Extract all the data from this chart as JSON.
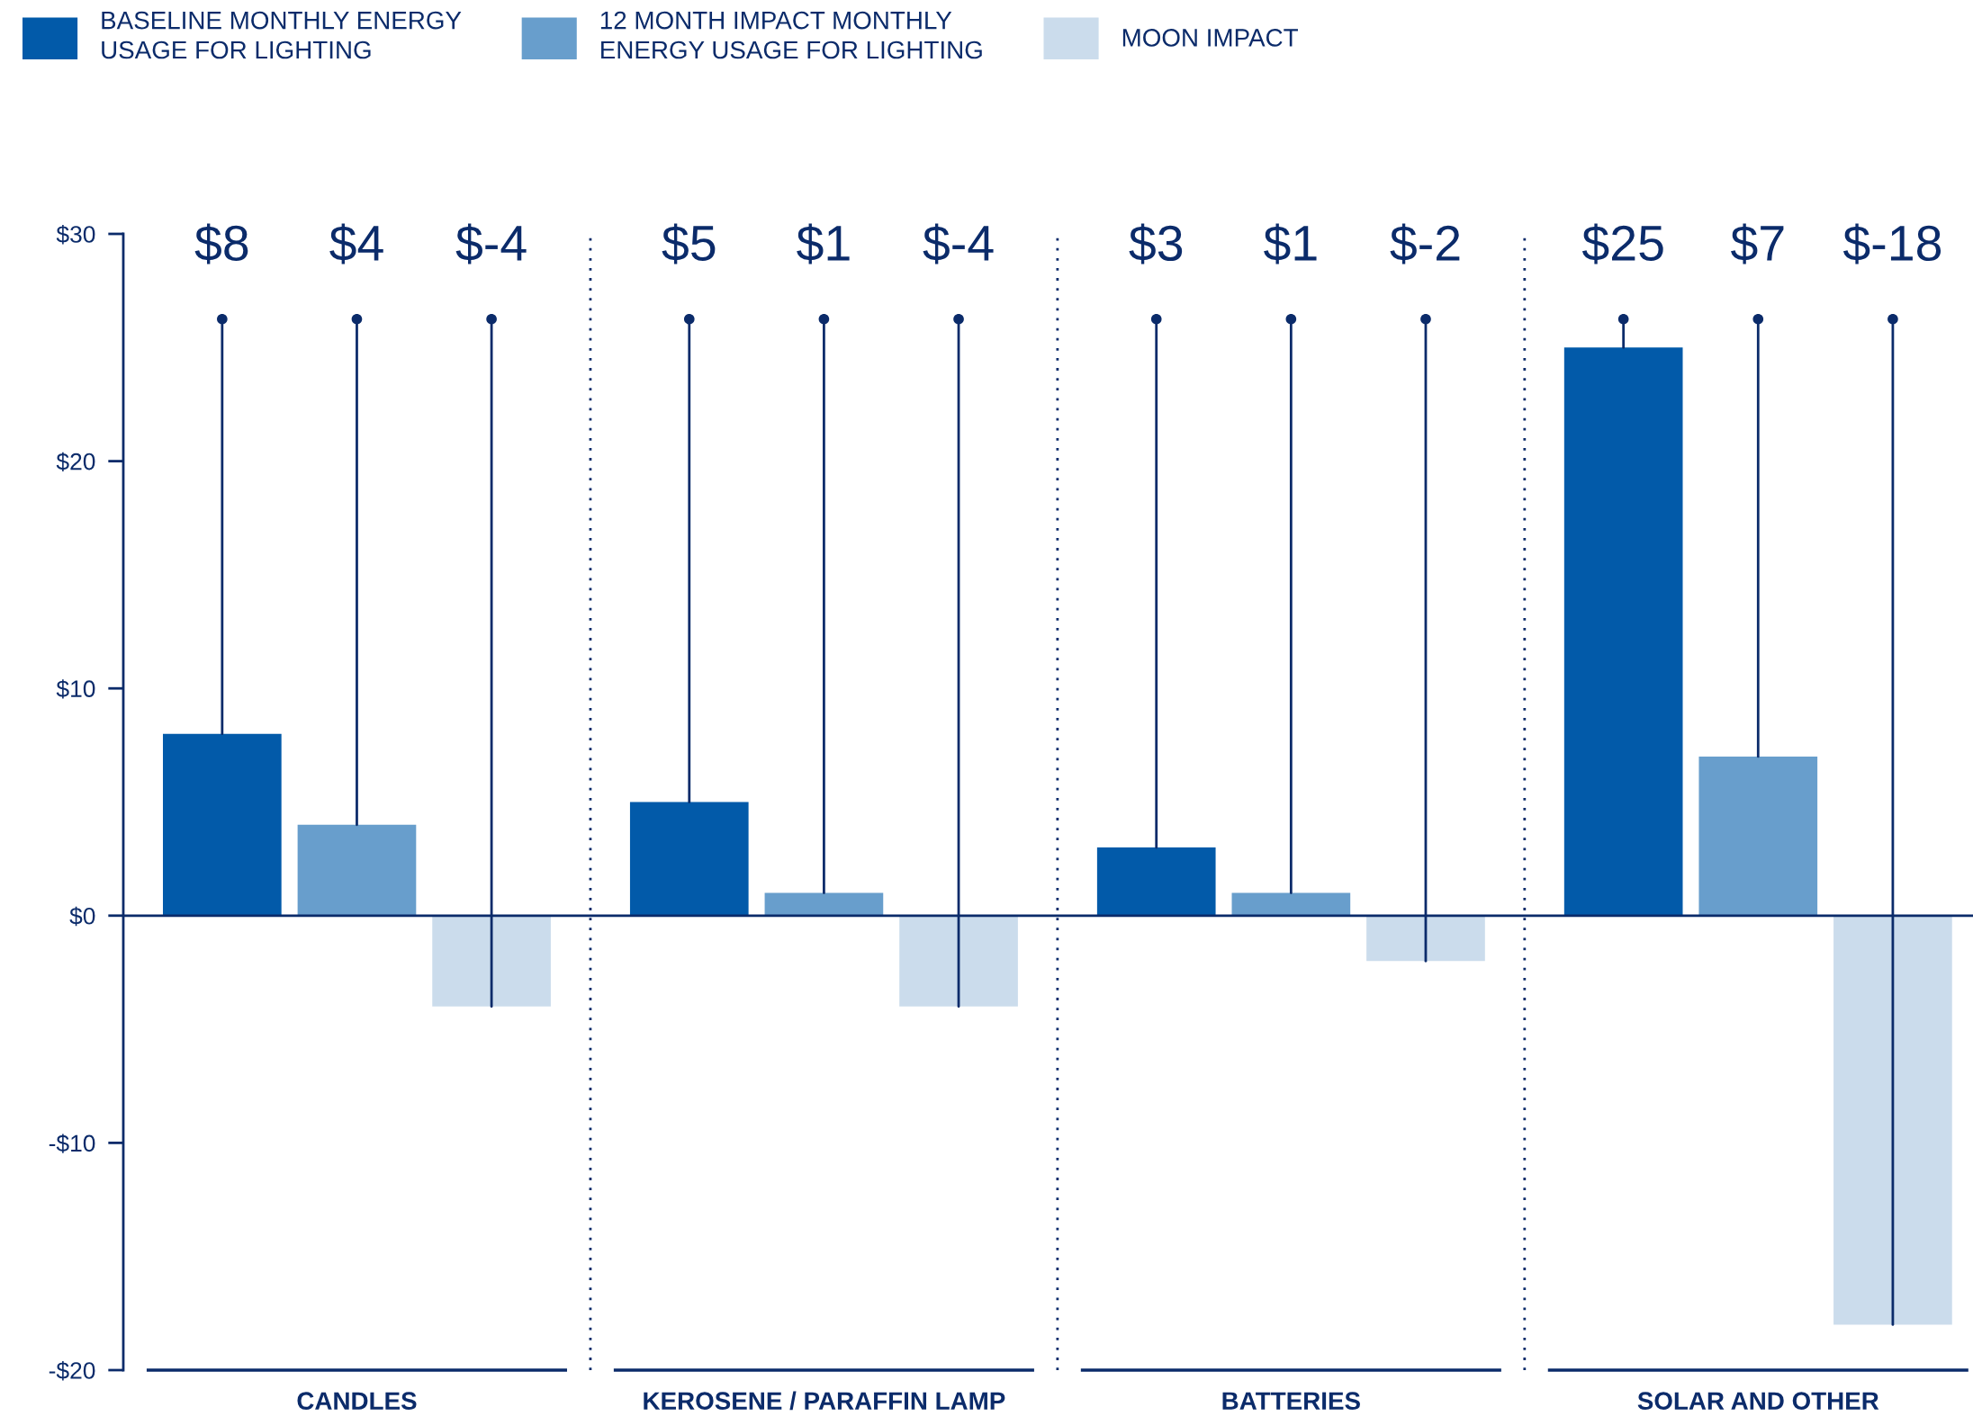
{
  "chart_data": {
    "type": "bar",
    "categories": [
      "CANDLES",
      "KEROSENE / PARAFFIN LAMP",
      "BATTERIES",
      "SOLAR AND OTHER"
    ],
    "series": [
      {
        "name": "BASELINE MONTHLY ENERGY\nUSAGE FOR LIGHTING",
        "color": "#025aa9",
        "values": [
          8,
          5,
          3,
          25
        ],
        "value_labels": [
          "$8",
          "$5",
          "$3",
          "$25"
        ]
      },
      {
        "name": "12 MONTH IMPACT MONTHLY\nENERGY USAGE FOR LIGHTING",
        "color": "#689ecc",
        "values": [
          4,
          1,
          1,
          7
        ],
        "value_labels": [
          "$4",
          "$1",
          "$1",
          "$7"
        ]
      },
      {
        "name": "MOON IMPACT",
        "color": "#cbdcec",
        "values": [
          -4,
          -4,
          -2,
          -18
        ],
        "value_labels": [
          "$-4",
          "$-4",
          "$-2",
          "$-18"
        ]
      }
    ],
    "ylim": [
      -20,
      30
    ],
    "yticks": [
      {
        "value": -20,
        "label": "-$20"
      },
      {
        "value": -10,
        "label": "-$10"
      },
      {
        "value": 0,
        "label": "$0"
      },
      {
        "value": 10,
        "label": "$10"
      },
      {
        "value": 20,
        "label": "$20"
      },
      {
        "value": 30,
        "label": "$30"
      }
    ],
    "ref_lines": [
      {
        "axis": "y",
        "value": 0,
        "color": "#0b2b6a"
      }
    ],
    "grid": "x",
    "legend": "top"
  }
}
